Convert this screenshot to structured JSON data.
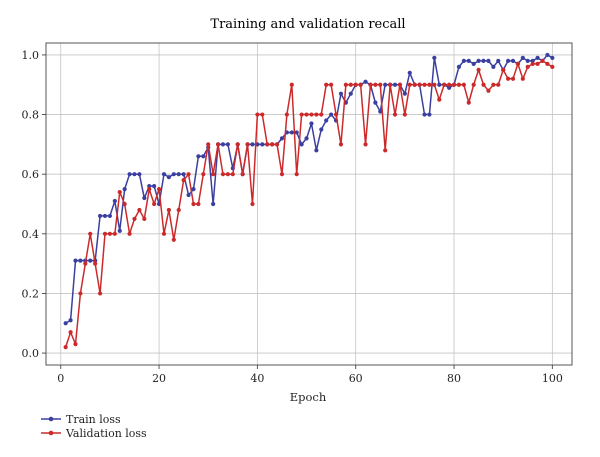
{
  "chart_data": {
    "type": "line",
    "title": "Training and validation recall",
    "xlabel": "Epoch",
    "ylabel": "",
    "xlim": [
      -3,
      104
    ],
    "ylim": [
      -0.04,
      1.04
    ],
    "xticks": [
      0,
      20,
      40,
      60,
      80,
      100
    ],
    "yticks": [
      0.0,
      0.2,
      0.4,
      0.6,
      0.8,
      1.0
    ],
    "xtick_labels": [
      "0",
      "20",
      "40",
      "60",
      "80",
      "100"
    ],
    "ytick_labels": [
      "0.0",
      "0.2",
      "0.4",
      "0.6",
      "0.8",
      "1.0"
    ],
    "grid": true,
    "legend_position": "below-left",
    "x": [
      1,
      2,
      3,
      4,
      5,
      6,
      7,
      8,
      9,
      10,
      11,
      12,
      13,
      14,
      15,
      16,
      17,
      18,
      19,
      20,
      21,
      22,
      23,
      24,
      25,
      26,
      27,
      28,
      29,
      30,
      31,
      32,
      33,
      34,
      35,
      36,
      37,
      38,
      39,
      40,
      41,
      42,
      43,
      44,
      45,
      46,
      47,
      48,
      49,
      50,
      51,
      52,
      53,
      54,
      55,
      56,
      57,
      58,
      59,
      60,
      61,
      62,
      63,
      64,
      65,
      66,
      67,
      68,
      69,
      70,
      71,
      72,
      73,
      74,
      75,
      76,
      77,
      78,
      79,
      80,
      81,
      82,
      83,
      84,
      85,
      86,
      87,
      88,
      89,
      90,
      91,
      92,
      93,
      94,
      95,
      96,
      97,
      98,
      99,
      100
    ],
    "series": [
      {
        "name": "Train loss",
        "color": "#3a3fa0",
        "values": [
          0.1,
          0.11,
          0.31,
          0.31,
          0.31,
          0.31,
          0.31,
          0.46,
          0.46,
          0.46,
          0.51,
          0.41,
          0.55,
          0.6,
          0.6,
          0.6,
          0.52,
          0.56,
          0.56,
          0.5,
          0.6,
          0.59,
          0.6,
          0.6,
          0.6,
          0.53,
          0.55,
          0.66,
          0.66,
          0.69,
          0.5,
          0.7,
          0.7,
          0.7,
          0.62,
          0.7,
          0.6,
          0.7,
          0.7,
          0.7,
          0.7,
          0.7,
          0.7,
          0.7,
          0.72,
          0.74,
          0.74,
          0.74,
          0.7,
          0.72,
          0.77,
          0.68,
          0.75,
          0.78,
          0.8,
          0.78,
          0.87,
          0.84,
          0.87,
          0.9,
          0.9,
          0.91,
          0.9,
          0.84,
          0.81,
          0.9,
          0.9,
          0.9,
          0.9,
          0.87,
          0.94,
          0.9,
          0.9,
          0.8,
          0.8,
          0.99,
          0.9,
          0.9,
          0.89,
          0.9,
          0.96,
          0.98,
          0.98,
          0.97,
          0.98,
          0.98,
          0.98,
          0.96,
          0.98,
          0.95,
          0.98,
          0.98,
          0.97,
          0.99,
          0.98,
          0.98,
          0.99,
          0.98,
          1.0,
          0.99
        ]
      },
      {
        "name": "Validation loss",
        "color": "#cc2a2a",
        "values": [
          0.02,
          0.07,
          0.03,
          0.2,
          0.3,
          0.4,
          0.3,
          0.2,
          0.4,
          0.4,
          0.4,
          0.54,
          0.5,
          0.4,
          0.45,
          0.48,
          0.45,
          0.55,
          0.5,
          0.55,
          0.4,
          0.48,
          0.38,
          0.48,
          0.58,
          0.6,
          0.5,
          0.5,
          0.6,
          0.7,
          0.6,
          0.7,
          0.6,
          0.6,
          0.6,
          0.7,
          0.6,
          0.7,
          0.5,
          0.8,
          0.8,
          0.7,
          0.7,
          0.7,
          0.6,
          0.8,
          0.9,
          0.6,
          0.8,
          0.8,
          0.8,
          0.8,
          0.8,
          0.9,
          0.9,
          0.8,
          0.7,
          0.9,
          0.9,
          0.9,
          0.9,
          0.7,
          0.9,
          0.9,
          0.9,
          0.68,
          0.9,
          0.8,
          0.9,
          0.8,
          0.9,
          0.9,
          0.9,
          0.9,
          0.9,
          0.9,
          0.85,
          0.9,
          0.9,
          0.9,
          0.9,
          0.9,
          0.84,
          0.9,
          0.95,
          0.9,
          0.88,
          0.9,
          0.9,
          0.95,
          0.92,
          0.92,
          0.97,
          0.92,
          0.96,
          0.97,
          0.97,
          0.98,
          0.97,
          0.96
        ]
      }
    ]
  }
}
